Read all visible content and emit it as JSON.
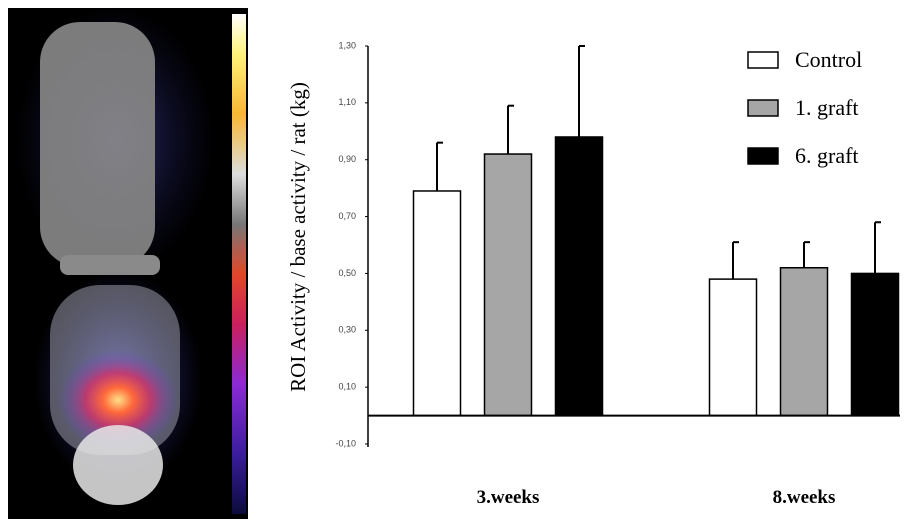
{
  "chart_data": {
    "type": "bar",
    "ylabel": "ROI Activity / base activity / rat (kg)",
    "categories": [
      "3.weeks",
      "8.weeks"
    ],
    "series": [
      {
        "name": "Control",
        "color": "#ffffff",
        "values": [
          0.79,
          0.48
        ],
        "errors": [
          0.17,
          0.13
        ]
      },
      {
        "name": "1. graft",
        "color": "#a6a6a6",
        "values": [
          0.92,
          0.52
        ],
        "errors": [
          0.17,
          0.09
        ]
      },
      {
        "name": "6. graft",
        "color": "#000000",
        "values": [
          0.98,
          0.5
        ],
        "errors": [
          0.32,
          0.18
        ]
      }
    ],
    "ylim": [
      -0.1,
      1.3
    ],
    "yticks": [
      {
        "value": -0.1,
        "label": "-0,10"
      },
      {
        "value": 0.1,
        "label": "0,10"
      },
      {
        "value": 0.3,
        "label": "0,30"
      },
      {
        "value": 0.5,
        "label": "0,50"
      },
      {
        "value": 0.7,
        "label": "0,70"
      },
      {
        "value": 0.9,
        "label": "0,90"
      },
      {
        "value": 1.1,
        "label": "1,10"
      },
      {
        "value": 1.3,
        "label": "1,30"
      }
    ],
    "grid": false,
    "legend": "upper right"
  }
}
